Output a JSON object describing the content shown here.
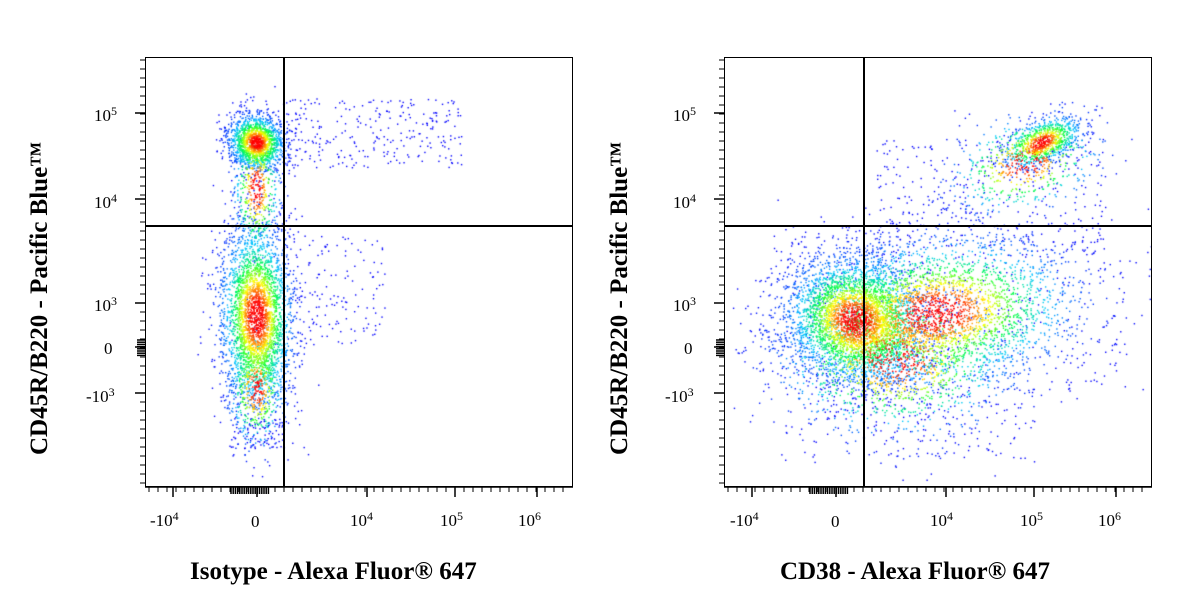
{
  "chart_data": [
    {
      "type": "scatter",
      "title": "",
      "xlabel": "Isotype - Alexa Fluor® 647",
      "ylabel": "CD45R/B220 - Pacific Blue™",
      "x_scale": "biexponential",
      "y_scale": "biexponential",
      "x_ticks": [
        "-10^4",
        "0",
        "10^4",
        "10^5",
        "10^6"
      ],
      "y_ticks": [
        "10^5",
        "10^4",
        "10^3",
        "0",
        "-10^3"
      ],
      "x_range": [
        -20000,
        3000000
      ],
      "y_range": [
        -5000,
        400000
      ],
      "color_map": "density: blue → cyan → green → yellow → red",
      "gates": {
        "x": 1500,
        "y": 5500
      },
      "populations": [
        {
          "name": "",
          "x_center": 0,
          "y_center": 40000,
          "relative_size": 0.35
        },
        {
          "name": "",
          "x_center": 0,
          "y_center": 500,
          "relative_size": 0.6
        },
        {
          "name": "",
          "x_center": 10000,
          "y_center": 40000,
          "relative_size": 0.03
        }
      ]
    },
    {
      "type": "scatter",
      "title": "",
      "xlabel": "CD38 - Alexa Fluor® 647",
      "ylabel": "CD45R/B220 - Pacific Blue™",
      "x_scale": "biexponential",
      "y_scale": "biexponential",
      "x_ticks": [
        "-10^4",
        "0",
        "10^4",
        "10^5",
        "10^6"
      ],
      "y_ticks": [
        "10^5",
        "10^4",
        "10^3",
        "0",
        "-10^3"
      ],
      "x_range": [
        -20000,
        3000000
      ],
      "y_range": [
        -5000,
        400000
      ],
      "color_map": "density: blue → cyan → green → yellow → red",
      "gates": {
        "x": 1500,
        "y": 5500
      },
      "populations": [
        {
          "name": "",
          "x_center": 150000,
          "y_center": 40000,
          "relative_size": 0.2
        },
        {
          "name": "",
          "x_center": 200,
          "y_center": 500,
          "relative_size": 0.55
        },
        {
          "name": "",
          "x_center": 20000,
          "y_center": 600,
          "relative_size": 0.25
        }
      ]
    }
  ],
  "colors": {
    "low": "#0000ff",
    "mid_low": "#00e5ff",
    "mid": "#00ff40",
    "mid_high": "#ffff00",
    "high": "#ff0000"
  }
}
